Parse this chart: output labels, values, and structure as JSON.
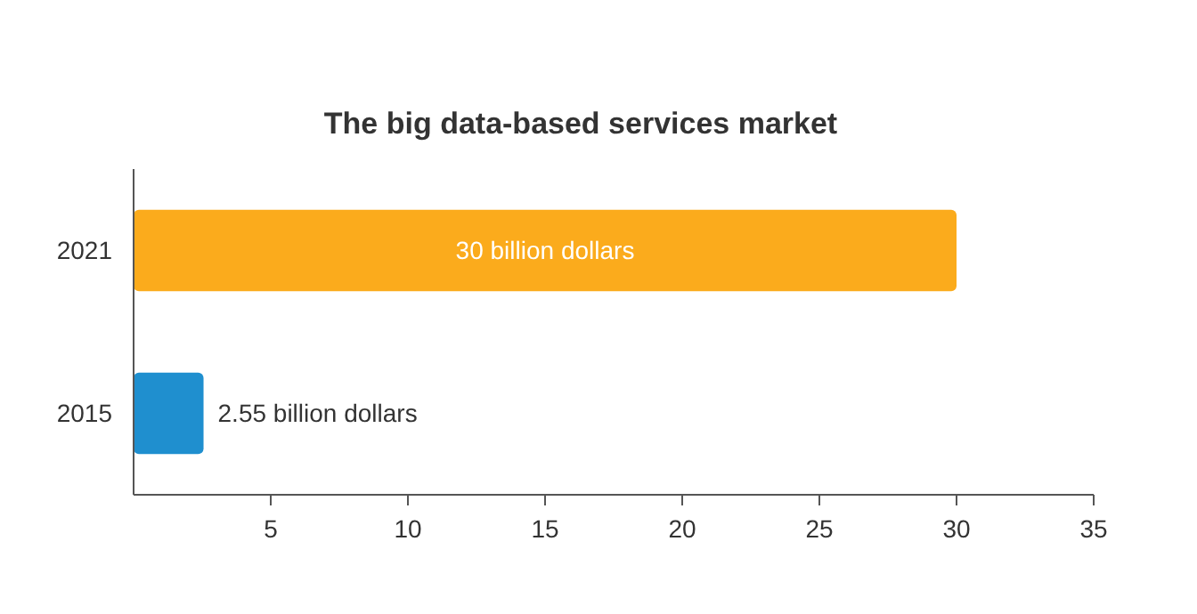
{
  "chart_data": {
    "type": "bar",
    "orientation": "horizontal",
    "title": "The big data-based services market",
    "categories": [
      "2021",
      "2015"
    ],
    "values": [
      30,
      2.55
    ],
    "colors": [
      "#fbab1c",
      "#1f8fcf"
    ],
    "value_labels": [
      "30 billion dollars",
      "2.55 billion dollars"
    ],
    "xlim": [
      0,
      35
    ],
    "xticks": [
      5,
      10,
      15,
      20,
      25,
      30,
      35
    ],
    "grid": false
  }
}
